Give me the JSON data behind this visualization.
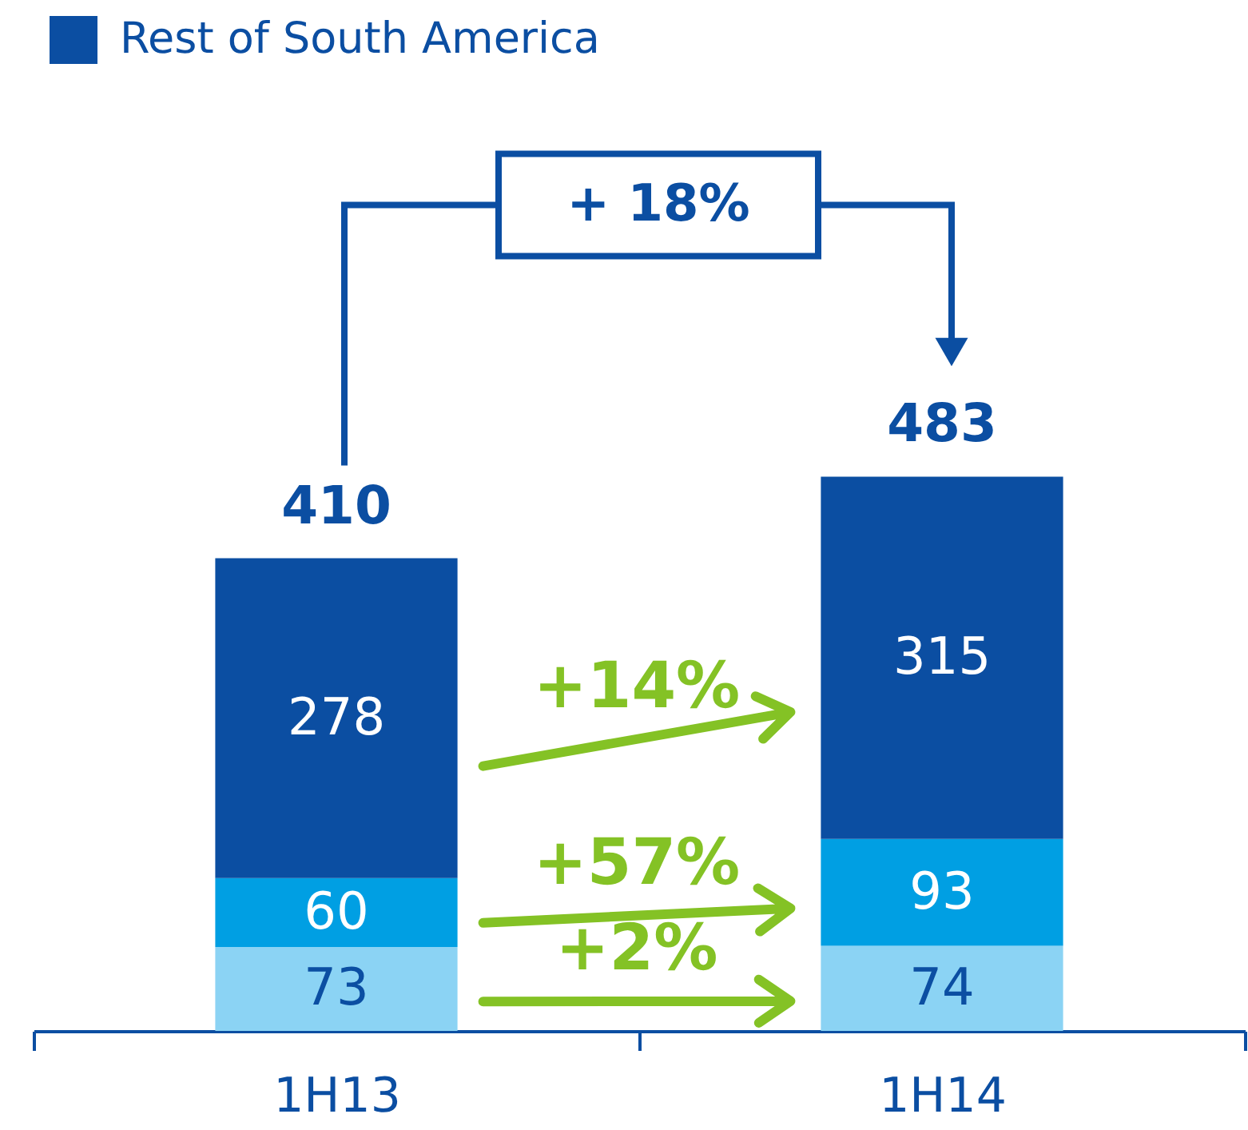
{
  "chart_data": {
    "type": "bar",
    "stacked": true,
    "categories": [
      "1H13",
      "1H14"
    ],
    "series": [
      {
        "color": "#8bd3f4",
        "values": [
          73,
          74
        ]
      },
      {
        "color": "#009fe3",
        "values": [
          60,
          93
        ]
      },
      {
        "name": "Rest of South America",
        "color": "#0b4ea2",
        "values": [
          278,
          315
        ]
      }
    ],
    "data_labels": true,
    "totals": [
      "410",
      "483"
    ],
    "legend": "top left",
    "tick_labels": "x",
    "annotations": [
      "+ 18%",
      "+14%",
      "+57%",
      "+2%"
    ]
  }
}
